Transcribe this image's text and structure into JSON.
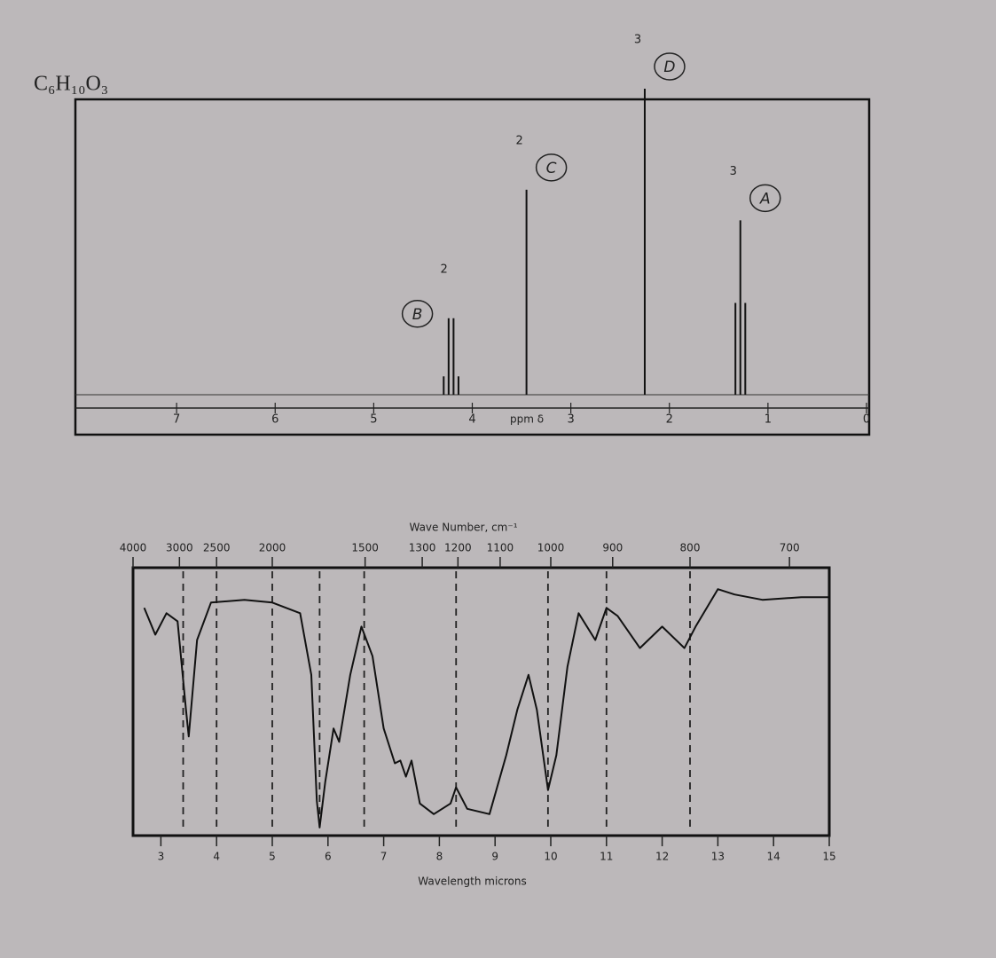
{
  "formula": "C₆H₁₀O₃",
  "chart_data": [
    {
      "type": "nmr",
      "xlabel": "ppm δ",
      "xlim": [
        8,
        0
      ],
      "xticks": [
        7,
        6,
        5,
        4,
        3,
        2,
        1,
        0
      ],
      "signals": [
        {
          "label": "B",
          "integration": 2,
          "x": [
            4.29,
            4.24,
            4.19,
            4.14
          ],
          "values": [
            6,
            25,
            25,
            6
          ]
        },
        {
          "label": "C",
          "integration": 2,
          "x": [
            3.45
          ],
          "values": [
            67
          ]
        },
        {
          "label": "D",
          "integration": 3,
          "x": [
            2.25
          ],
          "values": [
            100
          ]
        },
        {
          "label": "A",
          "integration": 3,
          "x": [
            1.33,
            1.28,
            1.23
          ],
          "values": [
            30,
            57,
            30
          ]
        }
      ]
    },
    {
      "type": "ir",
      "x2label": "Wave Number, cm⁻¹",
      "xlabel": "Wavelength microns",
      "xlim": [
        2.5,
        15
      ],
      "ylim": [
        0,
        100
      ],
      "xticks": [
        3,
        4,
        5,
        6,
        7,
        8,
        9,
        10,
        11,
        12,
        13,
        14,
        15
      ],
      "x2ticks": [
        4000,
        3000,
        2500,
        2000,
        1500,
        1300,
        1200,
        1100,
        1000,
        900,
        800,
        700
      ],
      "reference_lines": [
        3.4,
        4.0,
        5.0,
        5.85,
        6.65,
        8.3,
        9.95,
        11.0,
        12.5
      ],
      "x": [
        2.7,
        2.9,
        3.1,
        3.3,
        3.45,
        3.5,
        3.65,
        3.9,
        4.5,
        5.0,
        5.5,
        5.7,
        5.8,
        5.85,
        5.95,
        6.1,
        6.2,
        6.4,
        6.6,
        6.8,
        7.0,
        7.2,
        7.3,
        7.4,
        7.5,
        7.65,
        7.9,
        8.2,
        8.3,
        8.5,
        8.9,
        9.2,
        9.4,
        9.6,
        9.75,
        9.95,
        10.1,
        10.3,
        10.5,
        10.8,
        11.0,
        11.2,
        11.6,
        12.0,
        12.4,
        12.6,
        13.0,
        13.3,
        13.8,
        14.5,
        15.0
      ],
      "values": [
        85,
        75,
        83,
        80,
        47,
        37,
        73,
        87,
        88,
        87,
        83,
        60,
        13,
        3,
        20,
        40,
        35,
        60,
        78,
        67,
        40,
        27,
        28,
        22,
        28,
        12,
        8,
        12,
        18,
        10,
        8,
        30,
        47,
        60,
        47,
        17,
        30,
        63,
        83,
        73,
        85,
        82,
        70,
        78,
        70,
        78,
        92,
        90,
        88,
        89,
        89
      ]
    }
  ]
}
